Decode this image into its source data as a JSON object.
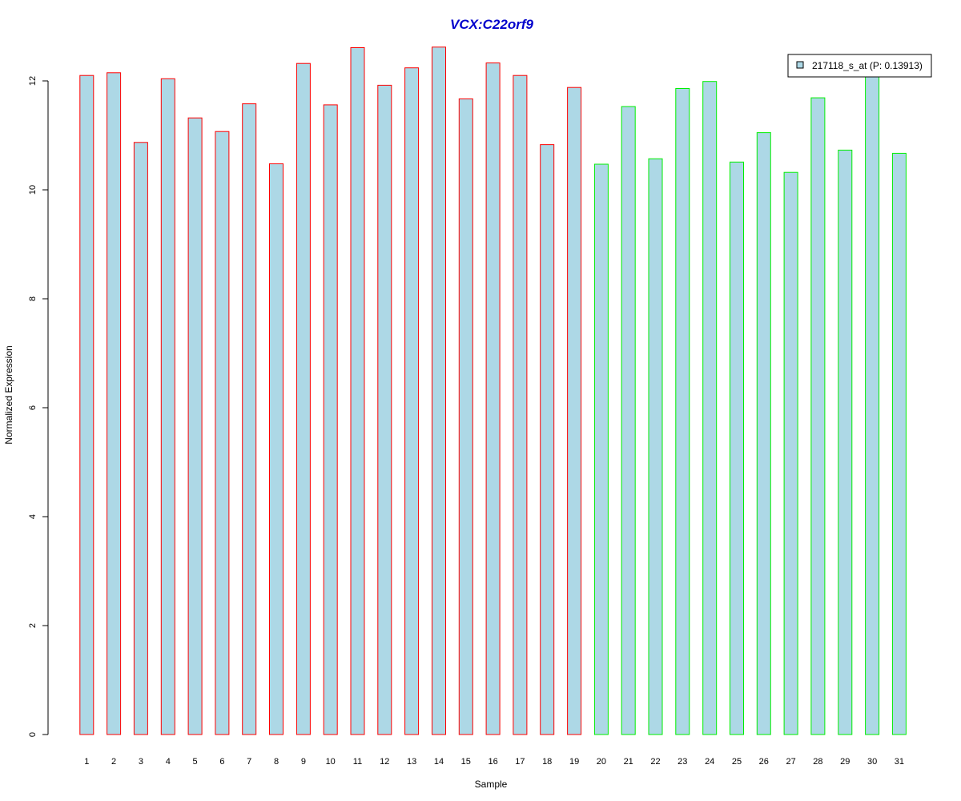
{
  "chart_data": {
    "type": "bar",
    "title": "VCX:C22orf9",
    "xlabel": "Sample",
    "ylabel": "Normalized Expression",
    "ylim": [
      0,
      12.6
    ],
    "yticks": [
      0,
      2,
      4,
      6,
      8,
      10,
      12
    ],
    "grid": false,
    "legend": {
      "placement": "top-right",
      "entries": [
        {
          "label": "217118_s_at (P: 0.13913)"
        }
      ]
    },
    "categories": [
      "1",
      "2",
      "3",
      "4",
      "5",
      "6",
      "7",
      "8",
      "9",
      "10",
      "11",
      "12",
      "13",
      "14",
      "15",
      "16",
      "17",
      "18",
      "19",
      "20",
      "21",
      "22",
      "23",
      "24",
      "25",
      "26",
      "27",
      "28",
      "29",
      "30",
      "31"
    ],
    "series": [
      {
        "name": "217118_s_at (P: 0.13913)",
        "values": [
          12.1,
          12.15,
          10.87,
          12.04,
          11.32,
          11.07,
          11.58,
          10.48,
          12.32,
          11.56,
          12.61,
          11.92,
          12.24,
          12.62,
          11.67,
          12.33,
          12.1,
          10.83,
          11.88,
          10.47,
          11.53,
          10.57,
          11.86,
          11.99,
          10.51,
          11.05,
          10.32,
          11.69,
          10.73,
          12.12,
          10.67
        ],
        "groups": [
          "a",
          "a",
          "a",
          "a",
          "a",
          "a",
          "a",
          "a",
          "a",
          "a",
          "a",
          "a",
          "a",
          "a",
          "a",
          "a",
          "a",
          "a",
          "a",
          "b",
          "b",
          "b",
          "b",
          "b",
          "b",
          "b",
          "b",
          "b",
          "b",
          "b",
          "b"
        ]
      }
    ],
    "colors": {
      "title": "#0000cc",
      "bar_fill": "#add8e6",
      "group_a_border": "#ff0000",
      "group_b_border": "#00ee00",
      "axis": "#000000"
    }
  }
}
